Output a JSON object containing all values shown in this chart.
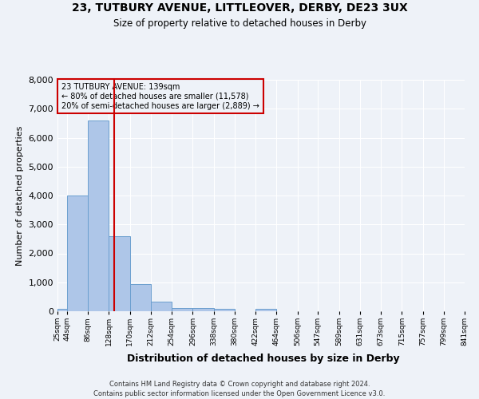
{
  "title": "23, TUTBURY AVENUE, LITTLEOVER, DERBY, DE23 3UX",
  "subtitle": "Size of property relative to detached houses in Derby",
  "xlabel": "Distribution of detached houses by size in Derby",
  "ylabel": "Number of detached properties",
  "annotation_title": "23 TUTBURY AVENUE: 139sqm",
  "annotation_line1": "← 80% of detached houses are smaller (11,578)",
  "annotation_line2": "20% of semi-detached houses are larger (2,889) →",
  "property_size": 139,
  "bin_edges": [
    25,
    44,
    86,
    128,
    170,
    212,
    254,
    296,
    338,
    380,
    422,
    464,
    506,
    547,
    589,
    631,
    673,
    715,
    757,
    799,
    841
  ],
  "bar_heights": [
    70,
    4000,
    6600,
    2600,
    950,
    320,
    120,
    110,
    70,
    0,
    70,
    0,
    0,
    0,
    0,
    0,
    0,
    0,
    0,
    0
  ],
  "bar_color": "#aec6e8",
  "bar_edge_color": "#6b9fcf",
  "vline_color": "#cc0000",
  "vline_x": 139,
  "ylim": [
    0,
    8000
  ],
  "yticks": [
    0,
    1000,
    2000,
    3000,
    4000,
    5000,
    6000,
    7000,
    8000
  ],
  "bg_color": "#eef2f8",
  "grid_color": "#ffffff",
  "footer_line1": "Contains HM Land Registry data © Crown copyright and database right 2024.",
  "footer_line2": "Contains public sector information licensed under the Open Government Licence v3.0."
}
